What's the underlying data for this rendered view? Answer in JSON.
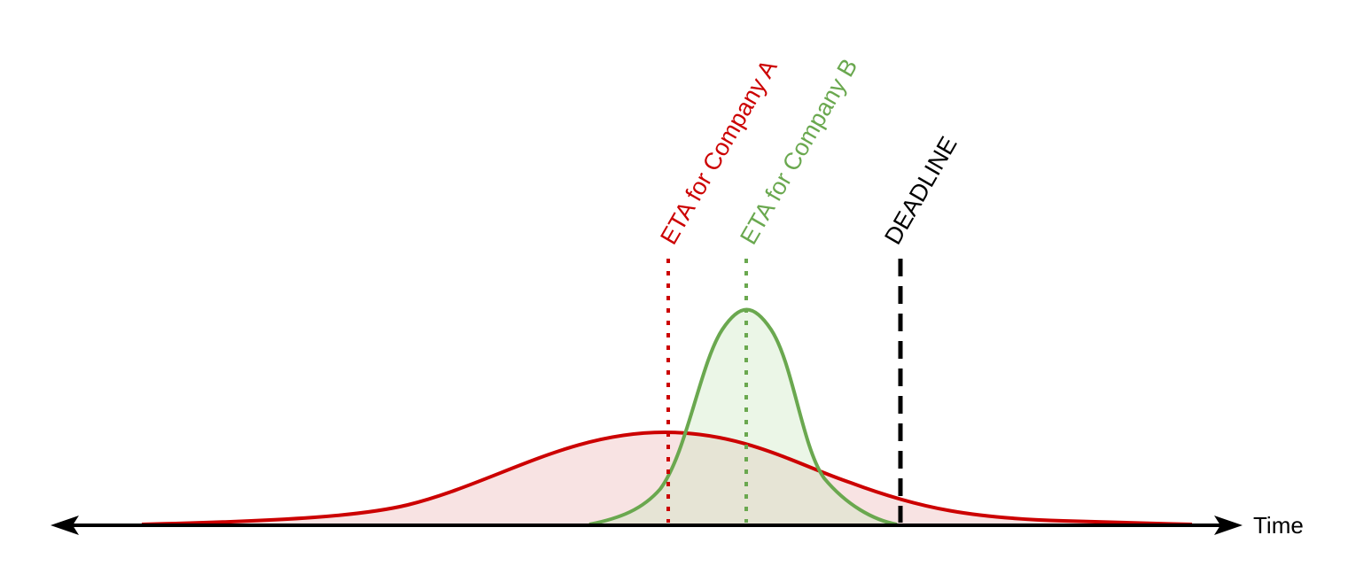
{
  "labels": {
    "eta_a": "ETA for Company A",
    "eta_b": "ETA for Company B",
    "deadline": "DEADLINE",
    "time": "Time"
  },
  "colors": {
    "company_a": "#cc0000",
    "company_a_fill": "#f8e3e3",
    "company_b": "#6aa84f",
    "company_b_fill": "#e9f4e4",
    "deadline": "#000000",
    "axis": "#000000"
  }
}
